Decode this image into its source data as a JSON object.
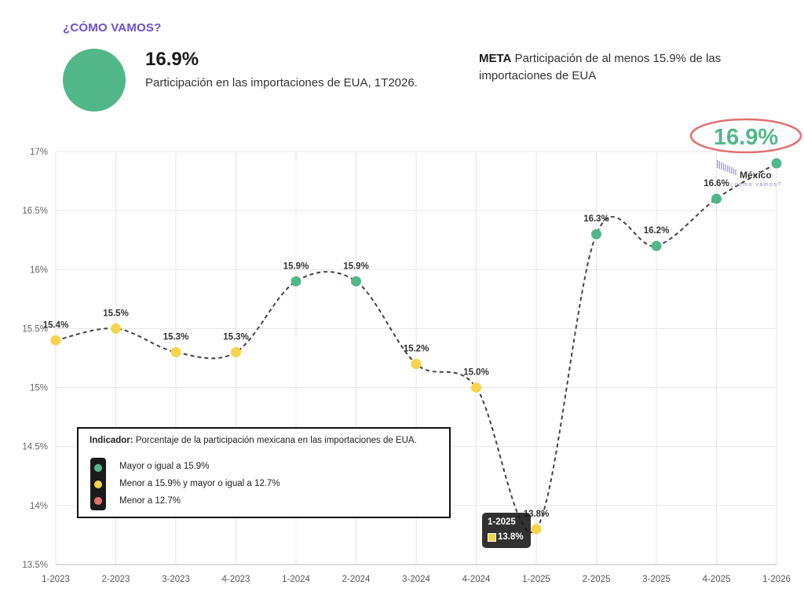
{
  "header": {
    "kicker": "¿CÓMO VAMOS?",
    "value": "16.9%",
    "description": "Participación en las importaciones de EUA, 1T2026.",
    "status_color": "#52b788",
    "meta_label": "META",
    "meta_text": "Participación de al menos 15.9% de las importaciones de EUA"
  },
  "callout": {
    "value": "16.9%",
    "color": "#52b788",
    "ring_color": "#e07070"
  },
  "watermark": {
    "line1": "México",
    "line2": "¿cómo vamos?"
  },
  "legend": {
    "title_bold": "Indicador:",
    "title_text": "Porcentaje de la participación mexicana en las importaciones de EUA.",
    "items": [
      {
        "label": "Mayor o igual a 15.9%",
        "color": "#52b788"
      },
      {
        "label": "Menor a 15.9% y mayor o igual a 12.7%",
        "color": "#f6d44b"
      },
      {
        "label": "Menor a 12.7%",
        "color": "#e76f6f"
      }
    ]
  },
  "tooltip": {
    "title": "1-2025",
    "value": "13.8%",
    "color": "#f6d44b"
  },
  "chart_data": {
    "type": "line",
    "categories": [
      "1-2023",
      "2-2023",
      "3-2023",
      "4-2023",
      "1-2024",
      "2-2024",
      "3-2024",
      "4-2024",
      "1-2025",
      "2-2025",
      "3-2025",
      "4-2025",
      "1-2026"
    ],
    "values": [
      15.4,
      15.5,
      15.3,
      15.3,
      15.9,
      15.9,
      15.2,
      15.0,
      13.8,
      16.3,
      16.2,
      16.6,
      16.9
    ],
    "data_labels": [
      "15.4%",
      "15.5%",
      "15.3%",
      "15.3%",
      "15.9%",
      "15.9%",
      "15.2%",
      "15.0%",
      "13.8%",
      "16.3%",
      "16.2%",
      "16.6%",
      ""
    ],
    "point_colors": [
      "#f6d44b",
      "#f6d44b",
      "#f6d44b",
      "#f6d44b",
      "#52b788",
      "#52b788",
      "#f6d44b",
      "#f6d44b",
      "#f6d44b",
      "#52b788",
      "#52b788",
      "#52b788",
      "#52b788"
    ],
    "yticks": [
      "17%",
      "16.5%",
      "16%",
      "15.5%",
      "15%",
      "14.5%",
      "14%",
      "13.5%"
    ],
    "ytick_values": [
      17,
      16.5,
      16,
      15.5,
      15,
      14.5,
      14,
      13.5
    ],
    "ylim": [
      13.5,
      17
    ],
    "grid": true,
    "line_style": "dashed",
    "line_color": "#444444",
    "legend_position": "bottom-left"
  }
}
